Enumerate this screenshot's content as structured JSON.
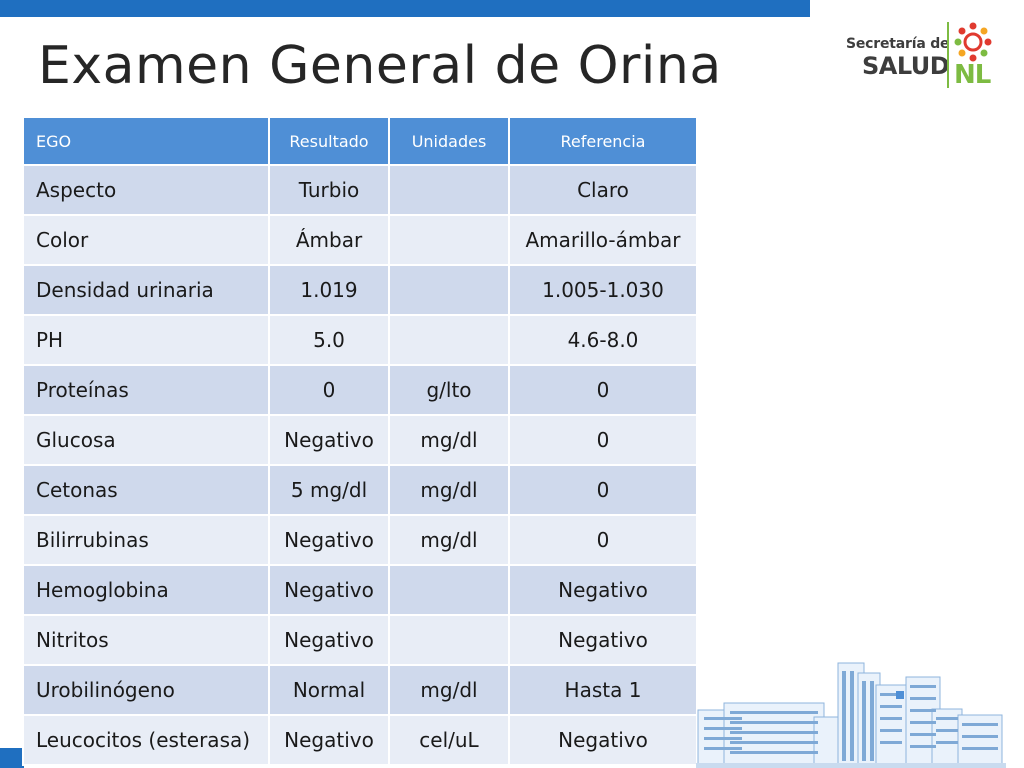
{
  "slide": {
    "title": "Examen General de Orina",
    "accent_color": "#1f6fc0"
  },
  "logo": {
    "line1": "Secretaría de",
    "line2": "SALUD",
    "line3": "NL",
    "colors": [
      "#3d3d3d",
      "#7dbb42",
      "#e03a2f",
      "#f5a623"
    ]
  },
  "table": {
    "headers": [
      "EGO",
      "Resultado",
      "Unidades",
      "Referencia"
    ],
    "header_color": "#4f8fd6",
    "rows": [
      [
        "Aspecto",
        "Turbio",
        "",
        "Claro"
      ],
      [
        "Color",
        "Ámbar",
        "",
        "Amarillo-ámbar"
      ],
      [
        "Densidad urinaria",
        "1.019",
        "",
        "1.005-1.030"
      ],
      [
        "PH",
        "5.0",
        "",
        "4.6-8.0"
      ],
      [
        "Proteínas",
        "0",
        "g/lto",
        "0"
      ],
      [
        "Glucosa",
        "Negativo",
        "mg/dl",
        "0"
      ],
      [
        "Cetonas",
        "5 mg/dl",
        "mg/dl",
        "0"
      ],
      [
        "Bilirrubinas",
        "Negativo",
        "mg/dl",
        "0"
      ],
      [
        "Hemoglobina",
        "Negativo",
        "",
        "Negativo"
      ],
      [
        "Nitritos",
        "Negativo",
        "",
        "Negativo"
      ],
      [
        "Urobilinógeno",
        "Normal",
        "mg/dl",
        "Hasta 1"
      ],
      [
        "Leucocitos (esterasa)",
        "Negativo",
        "cel/uL",
        "Negativo"
      ]
    ]
  },
  "decoration": {
    "illustration_icon": "hospital-buildings-icon"
  }
}
